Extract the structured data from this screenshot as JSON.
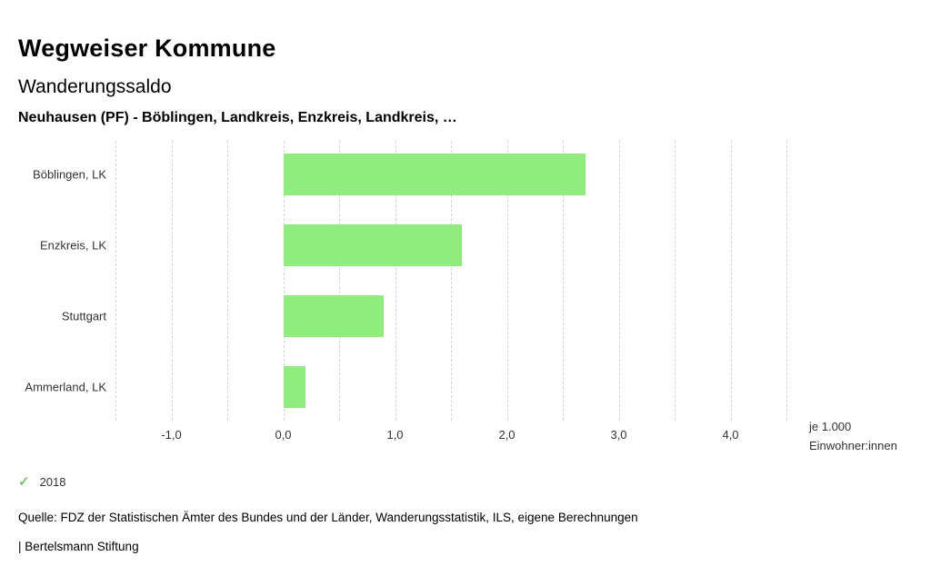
{
  "header": {
    "title": "Wegweiser Kommune",
    "subtitle": "Wanderungssaldo",
    "selection": "Neuhausen (PF) - Böblingen, Landkreis, Enzkreis, Landkreis, …"
  },
  "chart_data": {
    "type": "bar",
    "orientation": "horizontal",
    "title": "Wanderungssaldo",
    "categories": [
      "Böblingen, LK",
      "Enzkreis, LK",
      "Stuttgart",
      "Ammerland, LK"
    ],
    "series": [
      {
        "name": "2018",
        "values": [
          2.7,
          1.6,
          0.9,
          0.2
        ]
      }
    ],
    "xlim": [
      -1.5,
      4.5
    ],
    "grid_step": 0.5,
    "x_ticks": [
      -1.0,
      0.0,
      1.0,
      2.0,
      3.0,
      4.0
    ],
    "x_tick_labels": [
      "-1,0",
      "0,0",
      "1,0",
      "2,0",
      "3,0",
      "4,0"
    ],
    "xlabel": "je 1.000 Einwohner:innen",
    "ylabel": "",
    "grid": true,
    "legend_position": "bottom-left",
    "bar_color": "#90ed7d"
  },
  "axis": {
    "unit_line1": "je 1.000",
    "unit_line2": "Einwohner:innen"
  },
  "legend": {
    "check_icon": "✓",
    "check_color": "#72c66e",
    "year_label": "2018"
  },
  "footer": {
    "source": "Quelle: FDZ der Statistischen Ämter des Bundes und der Länder, Wanderungsstatistik, ILS, eigene Berechnungen",
    "branding": "| Bertelsmann Stiftung"
  }
}
